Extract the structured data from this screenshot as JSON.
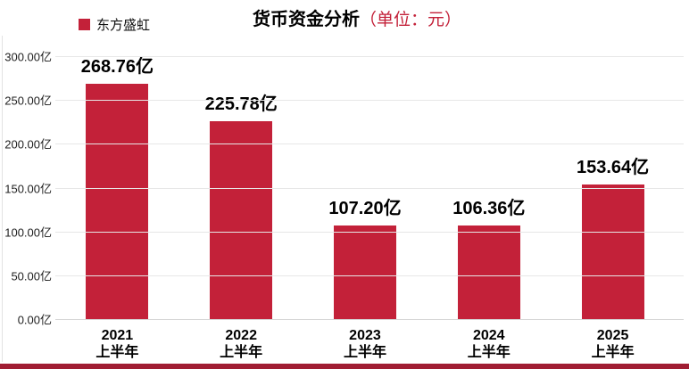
{
  "colors": {
    "accent_red": "#c32139",
    "bottom_strip_red": "#a01d33",
    "gridline_gray": "#e7e7e7"
  },
  "chart_data": {
    "type": "bar",
    "title": "货币资金分析",
    "title_unit": "（单位：元）",
    "legend": [
      "东方盛虹"
    ],
    "legend_position": "top-left",
    "categories": [
      [
        "2021",
        "上半年"
      ],
      [
        "2022",
        "上半年"
      ],
      [
        "2023",
        "上半年"
      ],
      [
        "2024",
        "上半年"
      ],
      [
        "2025",
        "上半年"
      ]
    ],
    "values": [
      268.76,
      225.78,
      107.2,
      106.36,
      153.64
    ],
    "value_labels": [
      "268.76亿",
      "225.78亿",
      "107.20亿",
      "106.36亿",
      "153.64亿"
    ],
    "value_unit": "亿",
    "y_ticks": [
      "300.00亿",
      "250.00亿",
      "200.00亿",
      "150.00亿",
      "100.00亿",
      "50.00亿",
      "0.00亿"
    ],
    "ylim": [
      0,
      300
    ],
    "grid": true,
    "bar_color": "#c32139"
  }
}
